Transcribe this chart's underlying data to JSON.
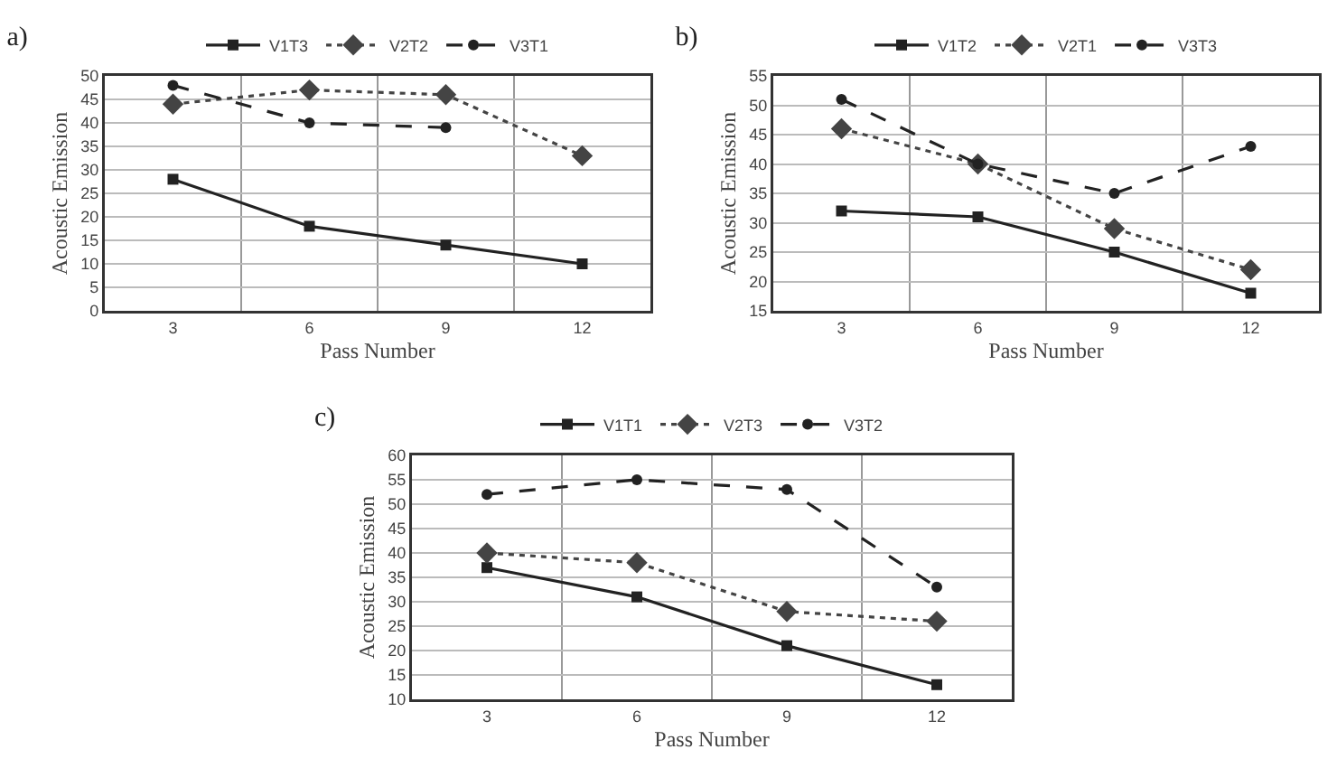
{
  "chart_data": [
    {
      "type": "line",
      "title": "a)",
      "xlabel": "Pass Number",
      "ylabel": "Acoustic Emission",
      "categories": [
        "3",
        "6",
        "9",
        "12"
      ],
      "ylim": [
        0,
        50
      ],
      "yticks": [
        0,
        5,
        10,
        15,
        20,
        25,
        30,
        35,
        40,
        45,
        50
      ],
      "grid": true,
      "legend": "top",
      "series": [
        {
          "name": "V1T3",
          "color": "#222222",
          "values": [
            28,
            18,
            14,
            10
          ],
          "marker": "square",
          "line_style": "solid"
        },
        {
          "name": "V2T2",
          "color": "#444444",
          "values": [
            44,
            47,
            46,
            33
          ],
          "marker": "diamond",
          "line_style": "dotted"
        },
        {
          "name": "V3T1",
          "color": "#222222",
          "values": [
            48,
            40,
            39,
            null
          ],
          "marker": "circle",
          "line_style": "dashed"
        }
      ]
    },
    {
      "type": "line",
      "title": "b)",
      "xlabel": "Pass Number",
      "ylabel": "Acoustic Emission",
      "categories": [
        "3",
        "6",
        "9",
        "12"
      ],
      "ylim": [
        15,
        55
      ],
      "yticks": [
        15,
        20,
        25,
        30,
        35,
        40,
        45,
        50,
        55
      ],
      "grid": true,
      "legend": "top",
      "series": [
        {
          "name": "V1T2",
          "color": "#222222",
          "values": [
            32,
            31,
            25,
            18
          ],
          "marker": "square",
          "line_style": "solid"
        },
        {
          "name": "V2T1",
          "color": "#444444",
          "values": [
            46,
            40,
            29,
            22
          ],
          "marker": "diamond",
          "line_style": "dotted"
        },
        {
          "name": "V3T3",
          "color": "#222222",
          "values": [
            51,
            40,
            35,
            43
          ],
          "marker": "circle",
          "line_style": "dashed"
        }
      ]
    },
    {
      "type": "line",
      "title": "c)",
      "xlabel": "Pass Number",
      "ylabel": "Acoustic Emission",
      "categories": [
        "3",
        "6",
        "9",
        "12"
      ],
      "ylim": [
        10,
        60
      ],
      "yticks": [
        10,
        15,
        20,
        25,
        30,
        35,
        40,
        45,
        50,
        55,
        60
      ],
      "grid": true,
      "legend": "top",
      "series": [
        {
          "name": "V1T1",
          "color": "#222222",
          "values": [
            37,
            31,
            21,
            13
          ],
          "marker": "square",
          "line_style": "solid"
        },
        {
          "name": "V2T3",
          "color": "#444444",
          "values": [
            40,
            38,
            28,
            26
          ],
          "marker": "diamond",
          "line_style": "dotted"
        },
        {
          "name": "V3T2",
          "color": "#222222",
          "values": [
            52,
            55,
            53,
            33
          ],
          "marker": "circle",
          "line_style": "dashed"
        }
      ]
    }
  ]
}
